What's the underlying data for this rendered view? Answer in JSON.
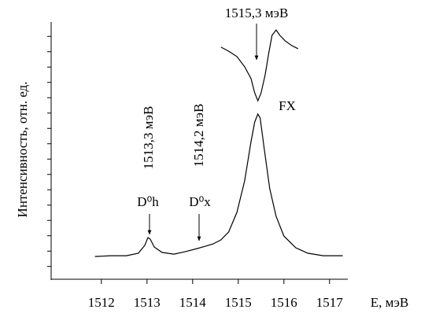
{
  "chart_data": {
    "type": "line",
    "ylabel": "Интенсивность, отн. ед.",
    "xlabel": "E, мэВ",
    "xlim": [
      1510.9,
      1517.4
    ],
    "xticks": [
      1512,
      1513,
      1514,
      1515,
      1516,
      1517
    ],
    "ylim": [
      0,
      10
    ],
    "yticks": [
      0.5,
      1.1,
      1.7,
      2.3,
      2.9,
      3.5,
      4.1,
      4.7,
      5.3,
      5.9,
      6.5,
      7.1,
      7.7,
      8.3,
      8.9,
      9.5
    ],
    "series": [
      {
        "color": "#000000",
        "x": [
          1511.86,
          1512.21,
          1512.55,
          1512.81,
          1512.95,
          1513.02,
          1513.07,
          1513.16,
          1513.33,
          1513.59,
          1513.84,
          1514.1,
          1514.28,
          1514.45,
          1514.62,
          1514.79,
          1514.97,
          1515.14,
          1515.28,
          1515.36,
          1515.43,
          1515.48,
          1515.57,
          1515.69,
          1515.83,
          1516.0,
          1516.26,
          1516.52,
          1516.86,
          1517.29
        ],
        "values": [
          0.89,
          0.92,
          0.92,
          1.02,
          1.32,
          1.63,
          1.57,
          1.26,
          1.05,
          0.98,
          1.08,
          1.2,
          1.29,
          1.38,
          1.54,
          1.85,
          2.62,
          3.85,
          5.38,
          6.15,
          6.46,
          6.31,
          5.08,
          3.54,
          2.46,
          1.69,
          1.23,
          1.02,
          0.92,
          0.92
        ]
      },
      {
        "color": "#000000",
        "x": [
          1514.62,
          1514.79,
          1514.97,
          1515.14,
          1515.28,
          1515.36,
          1515.43,
          1515.5,
          1515.59,
          1515.66,
          1515.74,
          1515.83,
          1515.91,
          1516.03,
          1516.17,
          1516.31
        ],
        "values": [
          9.08,
          8.92,
          8.71,
          8.31,
          7.85,
          7.29,
          6.98,
          7.29,
          8.0,
          8.77,
          9.54,
          9.75,
          9.54,
          9.32,
          9.14,
          9.02
        ]
      }
    ],
    "annotations": [
      "1515,3 мэВ",
      "FX",
      "1513,3 мэВ",
      "D⁰h",
      "1514,2 мэВ",
      "D⁰x"
    ]
  }
}
